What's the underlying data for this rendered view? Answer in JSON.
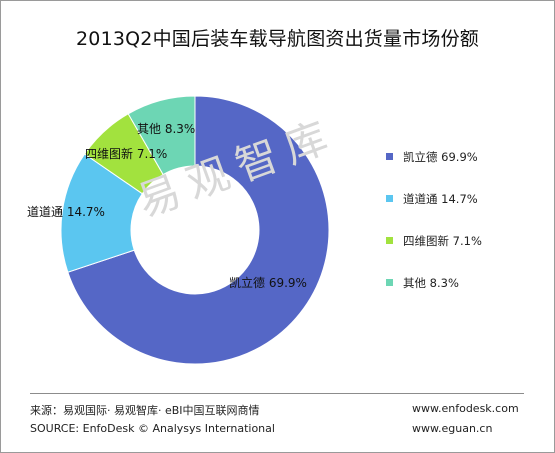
{
  "title": "2013Q2中国后装车载导航图资出货量市场份额",
  "watermark": "易观智库",
  "chart_data": {
    "type": "pie",
    "donut": true,
    "title": "2013Q2中国后装车载导航图资出货量市场份额",
    "slices": [
      {
        "label": "凯立德",
        "value": 69.9,
        "display": "69.9%",
        "color": "#5567c6"
      },
      {
        "label": "道道通",
        "value": 14.7,
        "display": "14.7%",
        "color": "#5bc6f0"
      },
      {
        "label": "四维图新",
        "value": 7.1,
        "display": "7.1%",
        "color": "#a2e23e"
      },
      {
        "label": "其他",
        "value": 8.3,
        "display": "8.3%",
        "color": "#6dd6b4"
      }
    ],
    "legend_position": "right"
  },
  "legend": [
    {
      "text": "凯立德 69.9%"
    },
    {
      "text": "道道通 14.7%"
    },
    {
      "text": "四维图新 7.1%"
    },
    {
      "text": "其他 8.3%"
    }
  ],
  "footer": {
    "source_cn": "来源：易观国际· 易观智库· eBI中国互联网商情",
    "source_en": "SOURCE: EnfoDesk © Analysys International",
    "url1": "www.enfodesk.com",
    "url2": "www.eguan.cn"
  }
}
